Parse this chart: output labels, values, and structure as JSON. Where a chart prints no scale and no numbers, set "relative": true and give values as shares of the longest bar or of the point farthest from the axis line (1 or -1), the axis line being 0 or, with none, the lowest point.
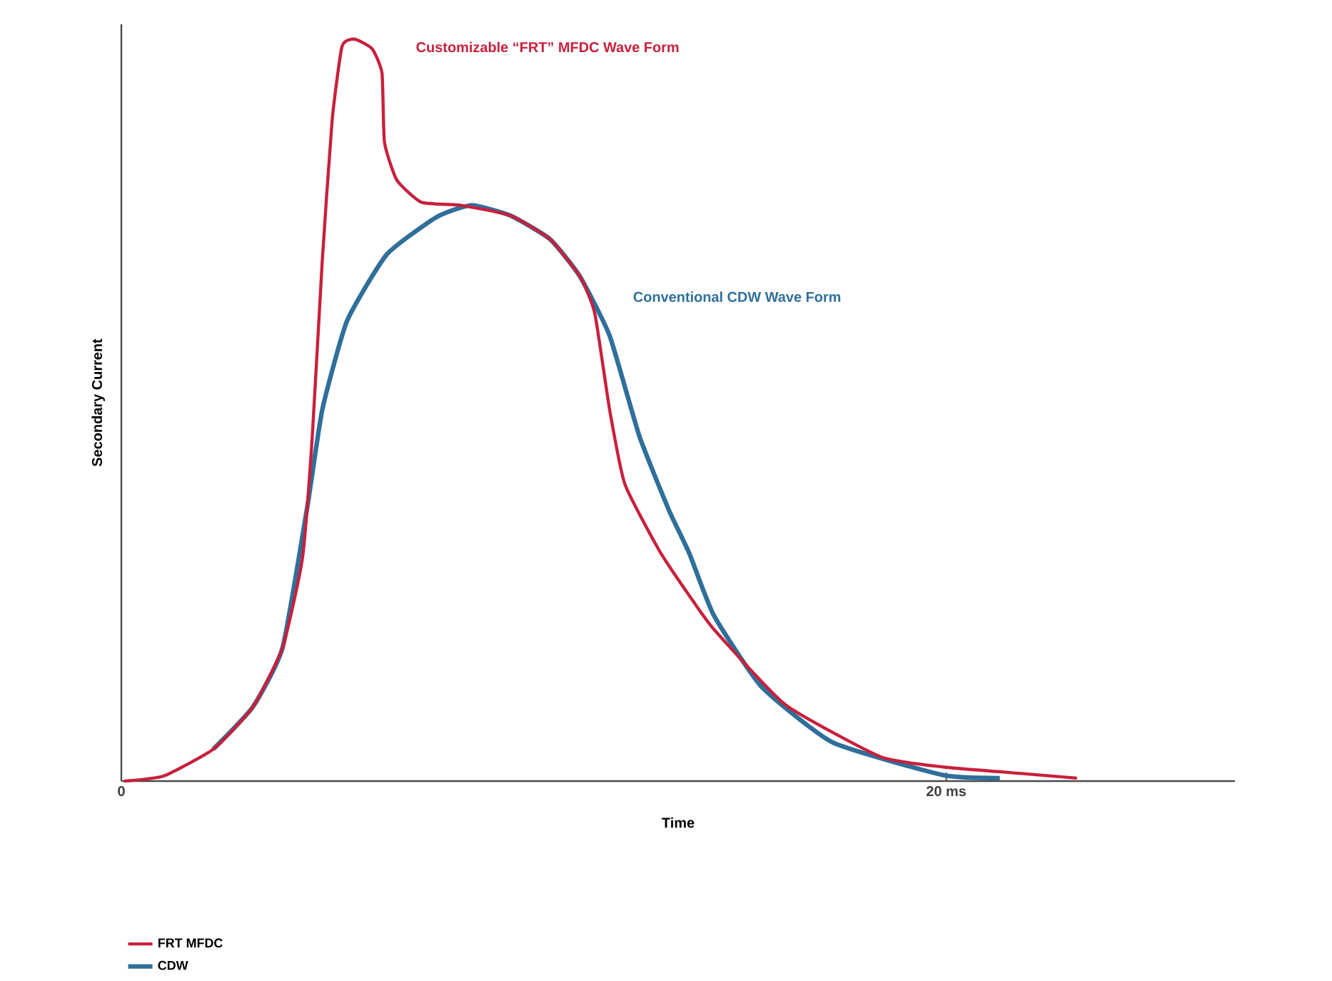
{
  "chart_data": {
    "type": "line",
    "relative": true,
    "xlabel": "Time",
    "ylabel": "Secondary Current",
    "xlim": [
      0,
      27
    ],
    "xticks": [
      0,
      {
        "value": 20,
        "label": "20 ms"
      }
    ],
    "legend": "bottom left",
    "grid": false,
    "marker": "none",
    "line_style": "solid",
    "annotations": [
      "Customizable “FRT” MFDC Wave Form",
      "Conventional CDW Wave Form"
    ],
    "series": [
      {
        "name": "FRT MFDC",
        "color": "#c8203c",
        "x": [
          0.07,
          1.03,
          2.23,
          3.19,
          3.91,
          4.39,
          4.63,
          4.87,
          5.11,
          5.35,
          5.65,
          6.08,
          6.32,
          6.38,
          6.68,
          7.28,
          8.24,
          9.44,
          10.4,
          11.12,
          11.48,
          11.84,
          12.21,
          13.05,
          13.77,
          14.36,
          16.1,
          18.4,
          19.93,
          21.88,
          23.17
        ],
        "values": [
          0,
          0.007,
          0.043,
          0.1,
          0.18,
          0.3,
          0.465,
          0.7,
          0.89,
          0.99,
          1.0,
          0.987,
          0.954,
          0.861,
          0.81,
          0.78,
          0.776,
          0.762,
          0.73,
          0.68,
          0.63,
          0.5,
          0.4,
          0.31,
          0.25,
          0.205,
          0.103,
          0.033,
          0.019,
          0.01,
          0.004
        ]
      },
      {
        "name": "CDW",
        "color": "#2f6f9a",
        "x": [
          2.23,
          3.19,
          3.91,
          4.51,
          4.87,
          5.47,
          6.44,
          7.64,
          8.48,
          9.44,
          10.4,
          11.12,
          11.84,
          12.56,
          13.27,
          13.77,
          14.36,
          15.51,
          17.25,
          19.93,
          21.3
        ],
        "values": [
          0.043,
          0.1,
          0.18,
          0.37,
          0.5,
          0.62,
          0.71,
          0.76,
          0.776,
          0.762,
          0.73,
          0.68,
          0.6,
          0.465,
          0.366,
          0.307,
          0.224,
          0.128,
          0.052,
          0.008,
          0.004
        ]
      }
    ]
  }
}
